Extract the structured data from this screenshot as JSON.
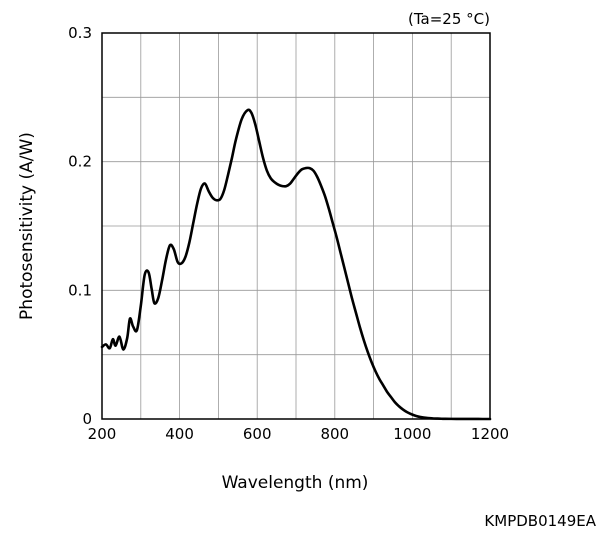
{
  "chart_data": {
    "type": "line",
    "title": "",
    "condition": "(Ta=25 °C)",
    "xlabel": "Wavelength (nm)",
    "ylabel": "Photosensitivity (A/W)",
    "xlim": [
      200,
      1200
    ],
    "ylim": [
      0,
      0.3
    ],
    "xticks": [
      200,
      400,
      600,
      800,
      1000,
      1200
    ],
    "xtick_labels": [
      "200",
      "400",
      "600",
      "800",
      "1000",
      "1200"
    ],
    "yticks": [
      0,
      0.1,
      0.2,
      0.3
    ],
    "ytick_labels": [
      "0",
      "0.1",
      "0.2",
      "0.3"
    ],
    "grid": true,
    "line_color": "#000000",
    "grid_color": "#999999",
    "series": [
      {
        "name": "",
        "x": [
          200,
          210,
          220,
          228,
          235,
          245,
          255,
          265,
          272,
          280,
          290,
          300,
          310,
          320,
          328,
          335,
          345,
          355,
          365,
          375,
          385,
          395,
          405,
          415,
          425,
          435,
          445,
          455,
          465,
          475,
          485,
          495,
          505,
          515,
          525,
          535,
          545,
          560,
          575,
          585,
          595,
          605,
          615,
          625,
          635,
          645,
          655,
          665,
          675,
          685,
          695,
          705,
          715,
          725,
          735,
          745,
          755,
          765,
          775,
          785,
          795,
          805,
          815,
          825,
          835,
          845,
          855,
          865,
          875,
          885,
          895,
          905,
          915,
          925,
          935,
          945,
          955,
          965,
          975,
          985,
          995,
          1005,
          1015,
          1025,
          1035,
          1045,
          1055,
          1065,
          1075,
          1085,
          1100,
          1120,
          1140,
          1160,
          1180,
          1200
        ],
        "y": [
          0.056,
          0.058,
          0.055,
          0.062,
          0.057,
          0.064,
          0.054,
          0.063,
          0.078,
          0.072,
          0.069,
          0.088,
          0.112,
          0.114,
          0.101,
          0.09,
          0.094,
          0.108,
          0.124,
          0.135,
          0.132,
          0.122,
          0.121,
          0.126,
          0.137,
          0.152,
          0.167,
          0.179,
          0.183,
          0.177,
          0.172,
          0.17,
          0.171,
          0.178,
          0.19,
          0.203,
          0.217,
          0.233,
          0.24,
          0.238,
          0.229,
          0.216,
          0.203,
          0.193,
          0.187,
          0.184,
          0.182,
          0.181,
          0.181,
          0.183,
          0.187,
          0.191,
          0.194,
          0.195,
          0.195,
          0.193,
          0.188,
          0.181,
          0.173,
          0.163,
          0.152,
          0.141,
          0.129,
          0.117,
          0.105,
          0.093,
          0.082,
          0.071,
          0.061,
          0.052,
          0.044,
          0.037,
          0.031,
          0.026,
          0.021,
          0.017,
          0.013,
          0.01,
          0.0075,
          0.0055,
          0.004,
          0.0028,
          0.0019,
          0.0013,
          0.0009,
          0.0006,
          0.0004,
          0.0003,
          0.0002,
          0.00015,
          0.0001,
          6e-05,
          4e-05,
          2e-05,
          1e-05,
          0.0
        ]
      }
    ]
  },
  "figure_code": "KMPDB0149EA"
}
